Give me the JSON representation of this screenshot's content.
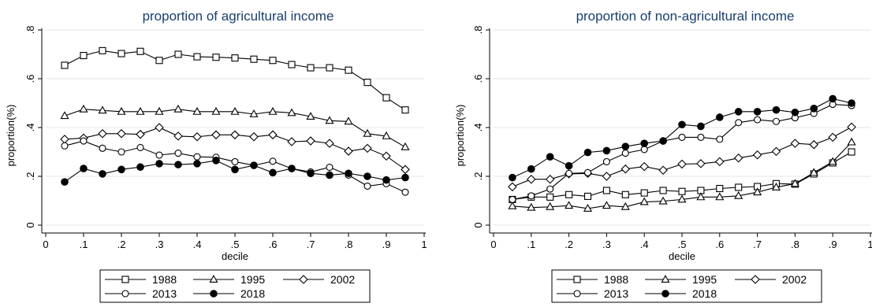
{
  "chart_data": [
    {
      "type": "line",
      "title": "proportion of agricultural income",
      "xlabel": "decile",
      "ylabel": "proportion(%)",
      "xlim": [
        0,
        1
      ],
      "ylim": [
        0,
        0.8
      ],
      "x_ticks": [
        "0",
        ".1",
        ".2",
        ".3",
        ".4",
        ".5",
        ".6",
        ".7",
        ".8",
        ".9",
        "1"
      ],
      "y_ticks": [
        "0",
        ".2",
        ".4",
        ".6",
        ".8"
      ],
      "x": [
        0.05,
        0.1,
        0.15,
        0.2,
        0.25,
        0.3,
        0.35,
        0.4,
        0.45,
        0.5,
        0.55,
        0.6,
        0.65,
        0.7,
        0.75,
        0.8,
        0.85,
        0.9,
        0.95
      ],
      "grid": "horizontal",
      "legend": "bottom",
      "series": [
        {
          "name": "1988",
          "marker": "square",
          "values": [
            0.655,
            0.695,
            0.715,
            0.703,
            0.712,
            0.675,
            0.7,
            0.69,
            0.688,
            0.685,
            0.68,
            0.675,
            0.658,
            0.645,
            0.645,
            0.635,
            0.585,
            0.522,
            0.472
          ]
        },
        {
          "name": "1995",
          "marker": "triangle",
          "values": [
            0.448,
            0.475,
            0.47,
            0.465,
            0.465,
            0.465,
            0.475,
            0.465,
            0.465,
            0.465,
            0.455,
            0.465,
            0.46,
            0.445,
            0.428,
            0.425,
            0.375,
            0.365,
            0.32
          ]
        },
        {
          "name": "2002",
          "marker": "diamond",
          "values": [
            0.352,
            0.357,
            0.375,
            0.375,
            0.372,
            0.4,
            0.365,
            0.362,
            0.37,
            0.37,
            0.362,
            0.37,
            0.342,
            0.345,
            0.335,
            0.303,
            0.315,
            0.283,
            0.228
          ]
        },
        {
          "name": "2013",
          "marker": "circle",
          "values": [
            0.325,
            0.345,
            0.315,
            0.3,
            0.318,
            0.287,
            0.295,
            0.28,
            0.278,
            0.26,
            0.245,
            0.262,
            0.232,
            0.218,
            0.237,
            0.205,
            0.16,
            0.17,
            0.135
          ]
        },
        {
          "name": "2018",
          "marker": "filled-circle",
          "values": [
            0.177,
            0.232,
            0.21,
            0.228,
            0.238,
            0.252,
            0.248,
            0.252,
            0.265,
            0.228,
            0.245,
            0.215,
            0.232,
            0.212,
            0.205,
            0.212,
            0.2,
            0.185,
            0.195
          ]
        }
      ]
    },
    {
      "type": "line",
      "title": "proportion of non-agricultural income",
      "xlabel": "decile",
      "ylabel": "proportion(%)",
      "xlim": [
        0,
        1
      ],
      "ylim": [
        0,
        0.8
      ],
      "x_ticks": [
        "0",
        ".1",
        ".2",
        ".3",
        ".4",
        ".5",
        ".6",
        ".7",
        ".8",
        ".9",
        "1"
      ],
      "y_ticks": [
        "0",
        ".2",
        ".4",
        ".6",
        ".8"
      ],
      "x": [
        0.05,
        0.1,
        0.15,
        0.2,
        0.25,
        0.3,
        0.35,
        0.4,
        0.45,
        0.5,
        0.55,
        0.6,
        0.65,
        0.7,
        0.75,
        0.8,
        0.85,
        0.9,
        0.95
      ],
      "grid": "horizontal",
      "legend": "bottom",
      "series": [
        {
          "name": "1988",
          "marker": "square",
          "values": [
            0.105,
            0.115,
            0.115,
            0.125,
            0.118,
            0.142,
            0.125,
            0.132,
            0.142,
            0.138,
            0.142,
            0.15,
            0.155,
            0.158,
            0.17,
            0.168,
            0.21,
            0.255,
            0.3
          ]
        },
        {
          "name": "1995",
          "marker": "triangle",
          "values": [
            0.078,
            0.072,
            0.075,
            0.08,
            0.068,
            0.08,
            0.075,
            0.095,
            0.098,
            0.105,
            0.115,
            0.115,
            0.12,
            0.135,
            0.155,
            0.17,
            0.215,
            0.26,
            0.34
          ]
        },
        {
          "name": "2002",
          "marker": "diamond",
          "values": [
            0.157,
            0.188,
            0.188,
            0.21,
            0.212,
            0.2,
            0.23,
            0.24,
            0.225,
            0.25,
            0.252,
            0.26,
            0.275,
            0.288,
            0.302,
            0.335,
            0.33,
            0.36,
            0.402
          ]
        },
        {
          "name": "2013",
          "marker": "circle",
          "values": [
            0.105,
            0.12,
            0.148,
            0.212,
            0.215,
            0.26,
            0.295,
            0.31,
            0.345,
            0.36,
            0.36,
            0.352,
            0.42,
            0.432,
            0.425,
            0.44,
            0.458,
            0.495,
            0.49
          ]
        },
        {
          "name": "2018",
          "marker": "filled-circle",
          "values": [
            0.195,
            0.23,
            0.28,
            0.243,
            0.298,
            0.305,
            0.322,
            0.335,
            0.345,
            0.412,
            0.405,
            0.442,
            0.465,
            0.465,
            0.472,
            0.462,
            0.478,
            0.518,
            0.5
          ]
        }
      ]
    }
  ]
}
